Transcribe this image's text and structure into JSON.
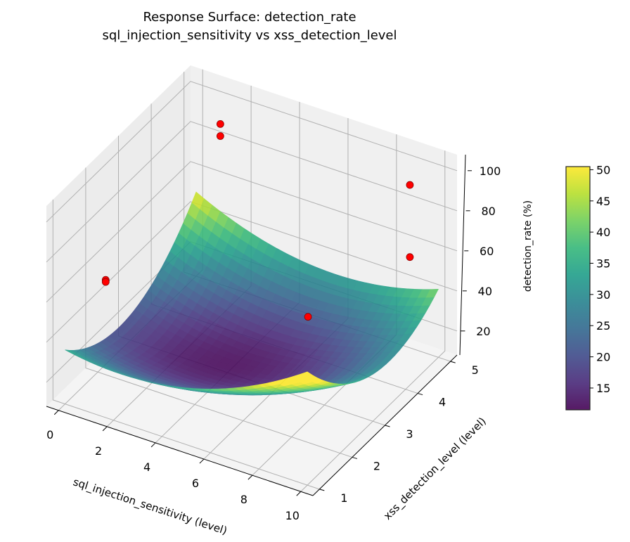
{
  "chart_data": {
    "type": "surface3d",
    "title": "Response Surface: detection_rate",
    "subtitle": "sql_injection_sensitivity vs xss_detection_level",
    "xlabel": "sql_injection_sensitivity (level)",
    "ylabel": "xss_detection_level (level)",
    "zlabel": "detection_rate (%)",
    "xlim": [
      -0.5,
      10.5
    ],
    "ylim": [
      0.8,
      5.2
    ],
    "zlim": [
      8,
      108
    ],
    "x_ticks": [
      "0",
      "2",
      "4",
      "6",
      "8",
      "10"
    ],
    "y_ticks": [
      "1",
      "2",
      "3",
      "4",
      "5"
    ],
    "z_ticks": [
      "20",
      "40",
      "60",
      "80",
      "100"
    ],
    "colormap": "viridis",
    "colorbar": {
      "label": "detection_rate (%)",
      "range": [
        11.5,
        50.5
      ],
      "ticks": [
        "15",
        "20",
        "25",
        "30",
        "35",
        "40",
        "45",
        "50"
      ]
    },
    "surface": {
      "min": 12,
      "x_at_min": 4,
      "y_at_min": 3,
      "coef_xx": 0.54,
      "coef_yy": 5.47,
      "coef_xy": -0.94,
      "x_range": [
        0,
        10
      ],
      "y_range": [
        1,
        5
      ]
    },
    "scatter": {
      "color": "#ff0000",
      "points": [
        {
          "x": 1,
          "y": 5,
          "z": 88
        },
        {
          "x": 1,
          "y": 5,
          "z": 82
        },
        {
          "x": 9.5,
          "y": 4.5,
          "z": 100
        },
        {
          "x": 9.5,
          "y": 4.5,
          "z": 64
        },
        {
          "x": 8,
          "y": 2.5,
          "z": 60
        },
        {
          "x": 1,
          "y": 1.5,
          "z": 66
        },
        {
          "x": 1,
          "y": 1.5,
          "z": 65
        }
      ]
    },
    "grid": true
  }
}
